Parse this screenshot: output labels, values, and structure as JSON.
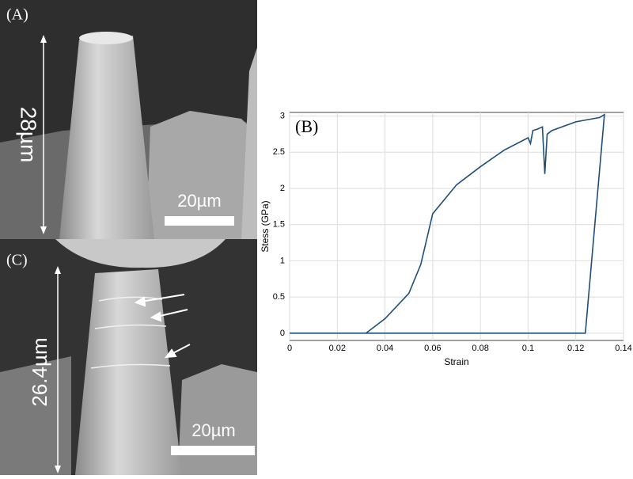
{
  "panels": [
    {
      "label": "(A)",
      "height_label": "28µm",
      "scale_label": "20µm"
    },
    {
      "label": "(C)",
      "height_label": "26.4µm",
      "scale_label": "20µm"
    }
  ],
  "chart_data": {
    "type": "line",
    "label": "(B)",
    "x_label": "Strain",
    "y_label": "Stess  (GPa)",
    "xlim": [
      0,
      0.14
    ],
    "xticks": [
      0,
      0.02,
      0.04,
      0.06,
      0.08,
      0.1,
      0.12,
      0.14
    ],
    "ylim": [
      -0.1,
      3.05
    ],
    "yticks": [
      0,
      0.5,
      1,
      1.5,
      2,
      2.5,
      3
    ],
    "grid": true,
    "series": [
      {
        "color": "#1f4e79",
        "x": [
          0,
          0.032,
          0.04,
          0.05,
          0.055,
          0.06,
          0.07,
          0.08,
          0.09,
          0.1,
          0.101,
          0.102,
          0.104,
          0.106,
          0.107,
          0.108,
          0.11,
          0.12,
          0.13,
          0.132,
          0.124,
          0.032
        ],
        "values": [
          0,
          0,
          0.2,
          0.55,
          0.95,
          1.65,
          2.05,
          2.3,
          2.53,
          2.7,
          2.62,
          2.8,
          2.82,
          2.85,
          2.2,
          2.75,
          2.8,
          2.92,
          2.98,
          3.02,
          0,
          0
        ]
      }
    ]
  }
}
